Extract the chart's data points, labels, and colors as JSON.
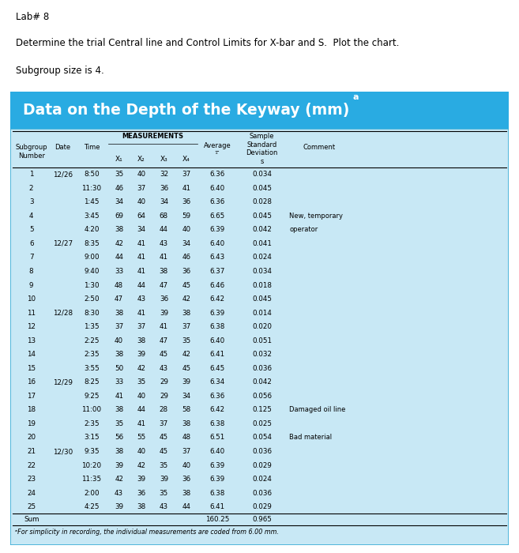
{
  "title_line1": "Lab# 8",
  "title_line2": "Determine the trial Central line and Control Limits for X-bar and S.  Plot the chart.",
  "title_line3": "Subgroup size is 4.",
  "table_title": "Data on the Depth of the Keyway (mm)",
  "table_title_superscript": "a",
  "table_bg_color": "#29ABE2",
  "table_inner_bg": "#C8E8F5",
  "rows": [
    [
      1,
      "12/26",
      "8:50",
      35,
      40,
      32,
      37,
      "6.36",
      "0.034",
      ""
    ],
    [
      2,
      "",
      "11:30",
      46,
      37,
      36,
      41,
      "6.40",
      "0.045",
      ""
    ],
    [
      3,
      "",
      "1:45",
      34,
      40,
      34,
      36,
      "6.36",
      "0.028",
      ""
    ],
    [
      4,
      "",
      "3:45",
      69,
      64,
      68,
      59,
      "6.65",
      "0.045",
      "New, temporary"
    ],
    [
      5,
      "",
      "4:20",
      38,
      34,
      44,
      40,
      "6.39",
      "0.042",
      "operator"
    ],
    [
      6,
      "12/27",
      "8:35",
      42,
      41,
      43,
      34,
      "6.40",
      "0.041",
      ""
    ],
    [
      7,
      "",
      "9:00",
      44,
      41,
      41,
      46,
      "6.43",
      "0.024",
      ""
    ],
    [
      8,
      "",
      "9:40",
      33,
      41,
      38,
      36,
      "6.37",
      "0.034",
      ""
    ],
    [
      9,
      "",
      "1:30",
      48,
      44,
      47,
      45,
      "6.46",
      "0.018",
      ""
    ],
    [
      10,
      "",
      "2:50",
      47,
      43,
      36,
      42,
      "6.42",
      "0.045",
      ""
    ],
    [
      11,
      "12/28",
      "8:30",
      38,
      41,
      39,
      38,
      "6.39",
      "0.014",
      ""
    ],
    [
      12,
      "",
      "1:35",
      37,
      37,
      41,
      37,
      "6.38",
      "0.020",
      ""
    ],
    [
      13,
      "",
      "2:25",
      40,
      38,
      47,
      35,
      "6.40",
      "0.051",
      ""
    ],
    [
      14,
      "",
      "2:35",
      38,
      39,
      45,
      42,
      "6.41",
      "0.032",
      ""
    ],
    [
      15,
      "",
      "3:55",
      50,
      42,
      43,
      45,
      "6.45",
      "0.036",
      ""
    ],
    [
      16,
      "12/29",
      "8:25",
      33,
      35,
      29,
      39,
      "6.34",
      "0.042",
      ""
    ],
    [
      17,
      "",
      "9:25",
      41,
      40,
      29,
      34,
      "6.36",
      "0.056",
      ""
    ],
    [
      18,
      "",
      "11:00",
      38,
      44,
      28,
      58,
      "6.42",
      "0.125",
      "Damaged oil line"
    ],
    [
      19,
      "",
      "2:35",
      35,
      41,
      37,
      38,
      "6.38",
      "0.025",
      ""
    ],
    [
      20,
      "",
      "3:15",
      56,
      55,
      45,
      48,
      "6.51",
      "0.054",
      "Bad material"
    ],
    [
      21,
      "12/30",
      "9:35",
      38,
      40,
      45,
      37,
      "6.40",
      "0.036",
      ""
    ],
    [
      22,
      "",
      "10:20",
      39,
      42,
      35,
      40,
      "6.39",
      "0.029",
      ""
    ],
    [
      23,
      "",
      "11:35",
      42,
      39,
      39,
      36,
      "6.39",
      "0.024",
      ""
    ],
    [
      24,
      "",
      "2:00",
      43,
      36,
      35,
      38,
      "6.38",
      "0.036",
      ""
    ],
    [
      25,
      "",
      "4:25",
      39,
      38,
      43,
      44,
      "6.41",
      "0.029",
      ""
    ]
  ],
  "sum_avg": "160.25",
  "sum_s": "0.965",
  "footnote": "ᵃFor simplicity in recording, the individual measurements are coded from 6.00 mm."
}
